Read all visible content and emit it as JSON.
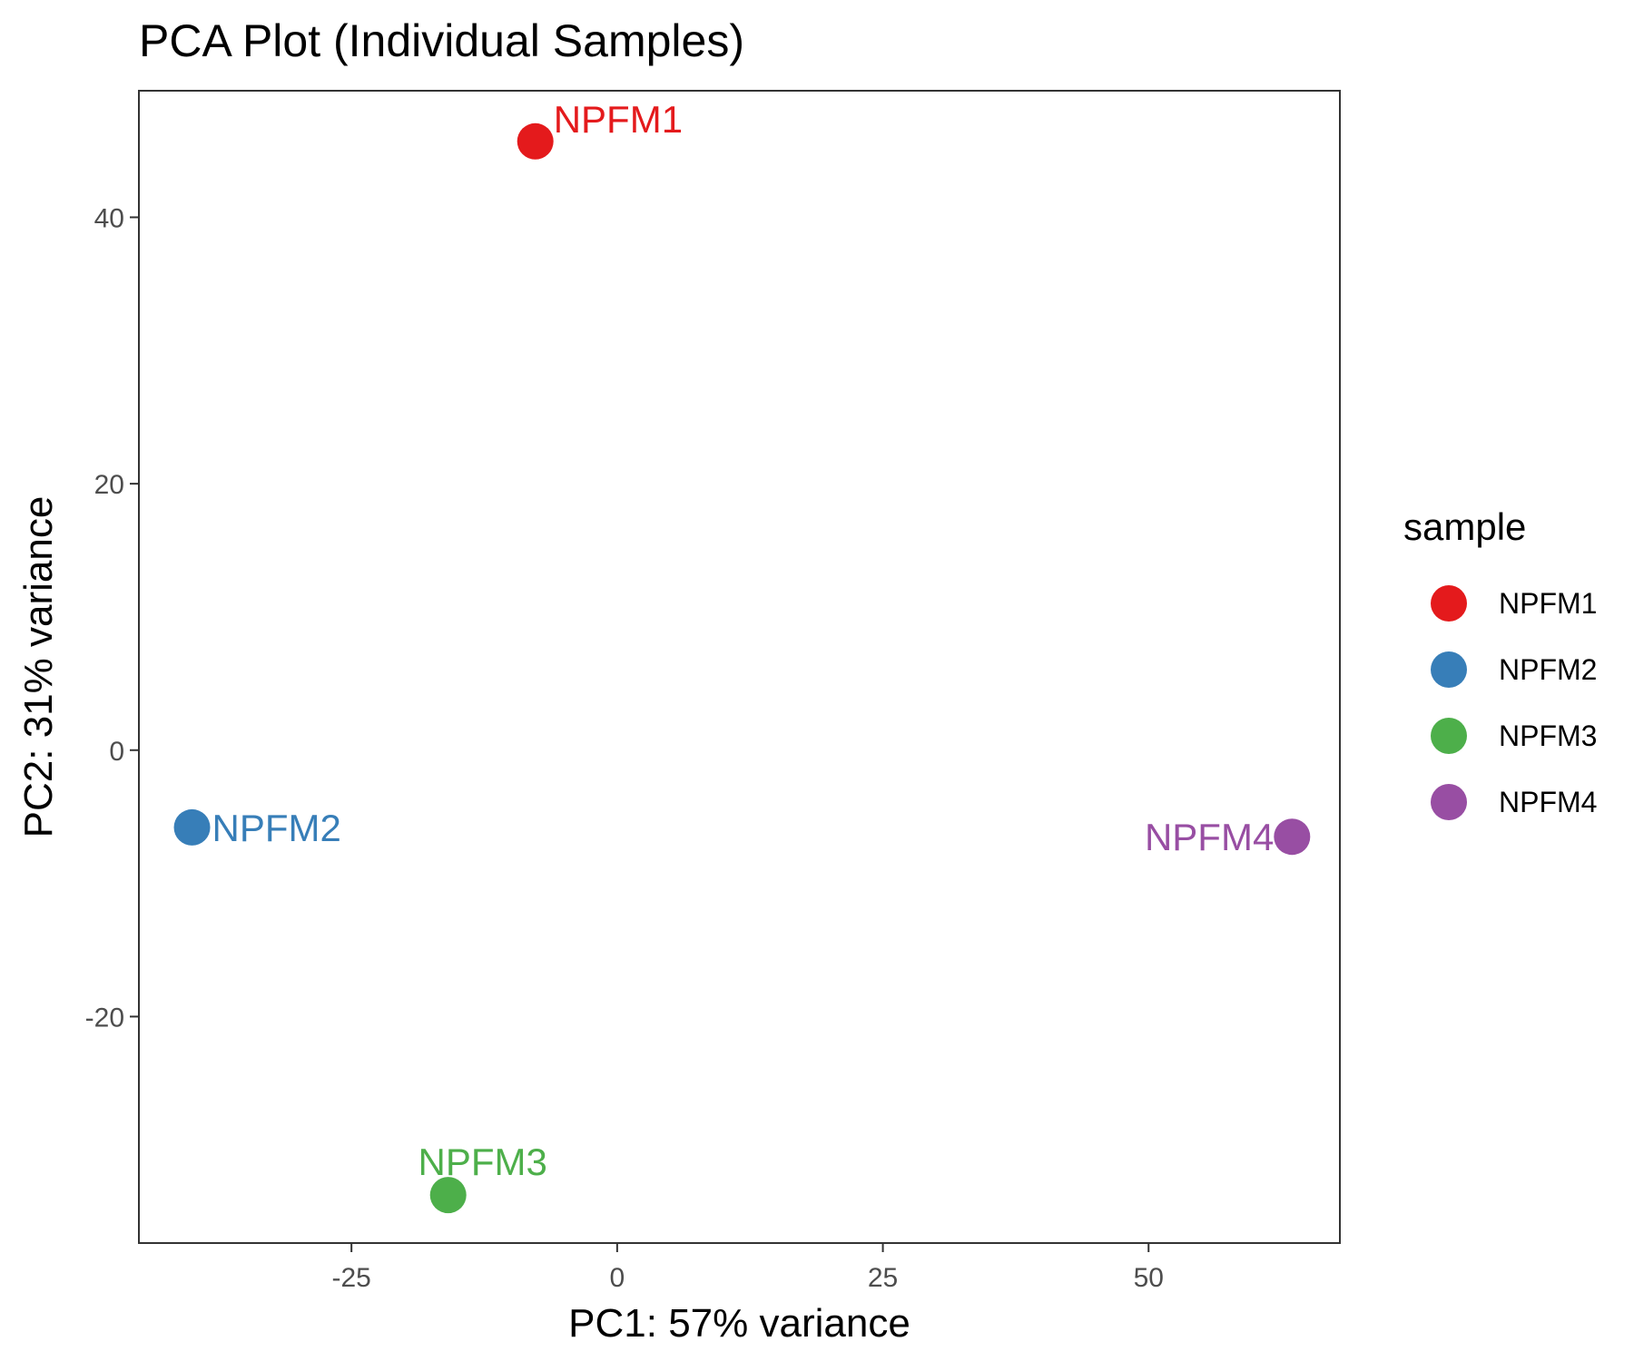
{
  "chart_data": {
    "type": "scatter",
    "title": "PCA Plot (Individual Samples)",
    "xlabel": "PC1: 57% variance",
    "ylabel": "PC2: 31% variance",
    "xlim": [
      -45,
      68
    ],
    "ylim": [
      -37,
      49.5
    ],
    "x_ticks": [
      -25,
      0,
      25,
      50
    ],
    "y_ticks": [
      -20,
      0,
      20,
      40
    ],
    "x_tick_labels": [
      "-25",
      "0",
      "25",
      "50"
    ],
    "y_tick_labels": [
      "-20",
      "0",
      "20",
      "40"
    ],
    "grid": false,
    "legend": {
      "title": "sample",
      "position": "right",
      "entries": [
        "NPFM1",
        "NPFM2",
        "NPFM3",
        "NPFM4"
      ]
    },
    "points": [
      {
        "label": "NPFM1",
        "x": -7.7,
        "y": 45.7,
        "color": "#e41a1c",
        "label_side": "upper-right"
      },
      {
        "label": "NPFM2",
        "x": -40.0,
        "y": -5.8,
        "color": "#377eb8",
        "label_side": "right"
      },
      {
        "label": "NPFM3",
        "x": -15.9,
        "y": -33.4,
        "color": "#4daf4a",
        "label_side": "above"
      },
      {
        "label": "NPFM4",
        "x": 63.5,
        "y": -6.5,
        "color": "#984ea3",
        "label_side": "left"
      }
    ]
  }
}
